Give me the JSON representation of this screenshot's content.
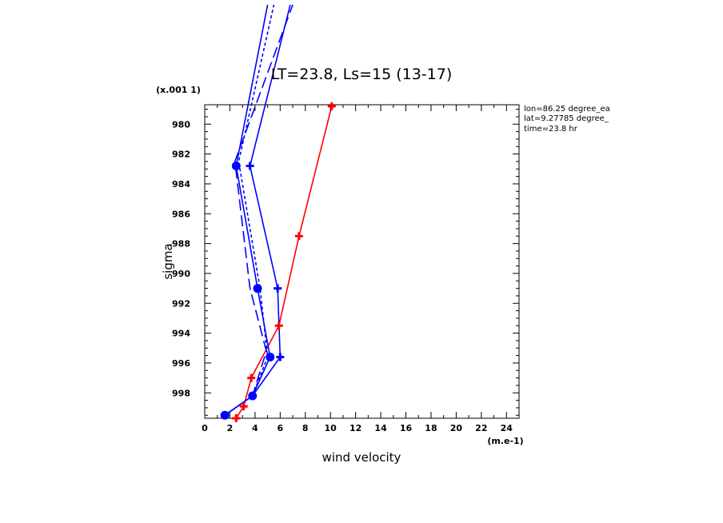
{
  "chart_data": {
    "type": "line",
    "title": "LT=23.8, Ls=15 (13-17)",
    "xlabel": "wind velocity",
    "ylabel": "sigma",
    "x_units_label": "(m.e-1)",
    "y_scale_label": "(x.001 1)",
    "xlim": [
      0,
      25
    ],
    "ylim_inverted": [
      999.7,
      978.7
    ],
    "x_ticks": [
      0,
      2,
      4,
      6,
      8,
      10,
      12,
      14,
      16,
      18,
      20,
      22,
      24
    ],
    "y_ticks": [
      980,
      982,
      984,
      986,
      988,
      990,
      992,
      994,
      996,
      998
    ],
    "info": [
      "lon=86.25 degree_ea",
      "lat=9.27785 degree_",
      "time=23.8 hr"
    ],
    "grid": false,
    "series": [
      {
        "style": "solid",
        "color": "#ff0000",
        "marker": "plus",
        "x": [
          2.5,
          3.1,
          3.7,
          5.9,
          7.5,
          10.1
        ],
        "y": [
          999.7,
          998.9,
          997.0,
          993.5,
          987.5,
          978.8
        ]
      },
      {
        "style": "solid",
        "color": "#0000ff",
        "marker": "circle",
        "x": [
          1.6,
          3.8,
          5.2,
          4.2,
          2.5,
          5.0
        ],
        "y": [
          999.5,
          998.2,
          995.6,
          991.0,
          982.8,
          972.0
        ]
      },
      {
        "style": "solid",
        "color": "#0000ff",
        "marker": "plus",
        "x": [
          1.6,
          3.8,
          6.0,
          5.8,
          3.6,
          6.8
        ],
        "y": [
          999.5,
          998.2,
          995.6,
          991.0,
          982.8,
          972.0
        ]
      },
      {
        "style": "dashed",
        "color": "#0000ff",
        "marker": "none",
        "x": [
          1.6,
          3.8,
          4.9,
          3.6,
          2.4,
          7.0
        ],
        "y": [
          999.5,
          998.2,
          995.2,
          991.0,
          982.5,
          972.0
        ]
      },
      {
        "style": "dotted",
        "color": "#0000ff",
        "marker": "none",
        "x": [
          1.6,
          3.8,
          5.0,
          4.4,
          2.7,
          5.5
        ],
        "y": [
          999.5,
          998.2,
          995.6,
          991.0,
          982.5,
          972.0
        ]
      }
    ]
  }
}
